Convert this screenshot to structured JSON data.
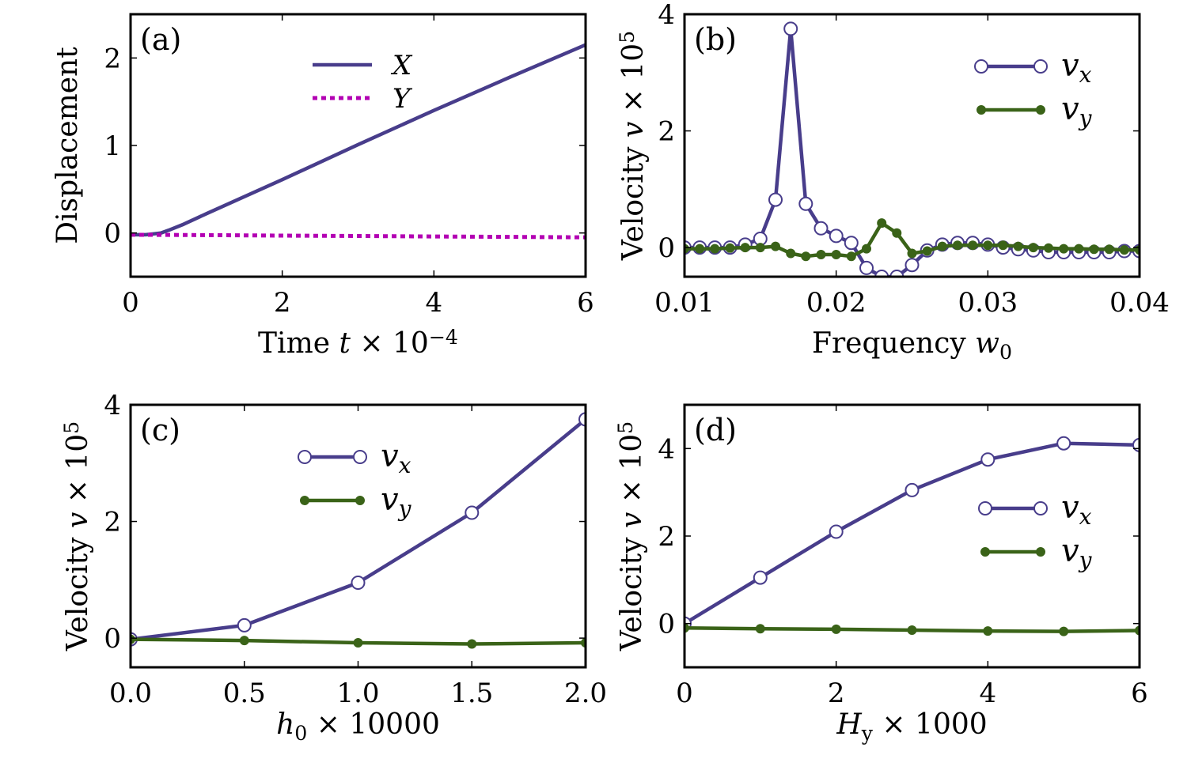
{
  "colors": {
    "vx": "#483d8b",
    "vy": "#3a6318",
    "X": "#483d8b",
    "Y": "#b300b3"
  },
  "chart_data": [
    {
      "type": "line",
      "panel": "(a)",
      "xlabel_parts": [
        "Time ",
        "t",
        " × 10",
        "−4"
      ],
      "ylabel": "Displacement",
      "xlim": [
        0,
        6
      ],
      "ylim": [
        -0.5,
        2.5
      ],
      "xticks": [
        0,
        2,
        4,
        6
      ],
      "xtick_labels": [
        "0",
        "2",
        "4",
        "6"
      ],
      "yticks": [
        0,
        1,
        2
      ],
      "ytick_labels": [
        "0",
        "1",
        "2"
      ],
      "legend_position": "top-center",
      "series": [
        {
          "name": "X",
          "style": "solid",
          "color": "#483d8b",
          "x": [
            0,
            0.2,
            0.3,
            0.4,
            0.5,
            0.7,
            1,
            2,
            3,
            4,
            5,
            6
          ],
          "y": [
            -0.02,
            -0.02,
            -0.01,
            0.0,
            0.03,
            0.1,
            0.22,
            0.61,
            1.01,
            1.4,
            1.78,
            2.15
          ]
        },
        {
          "name": "Y",
          "style": "dashed",
          "color": "#b300b3",
          "x": [
            0,
            1,
            2,
            3,
            4,
            5,
            6
          ],
          "y": [
            -0.02,
            -0.025,
            -0.03,
            -0.035,
            -0.04,
            -0.045,
            -0.05
          ]
        }
      ]
    },
    {
      "type": "line",
      "panel": "(b)",
      "xlabel_parts": [
        "Frequency ",
        "w",
        "0"
      ],
      "ylabel_parts": [
        "Velocity ",
        "v",
        " × 10",
        "5"
      ],
      "xlim": [
        0.01,
        0.04
      ],
      "ylim": [
        -0.5,
        4
      ],
      "xticks": [
        0.01,
        0.02,
        0.03,
        0.04
      ],
      "xtick_labels": [
        "0.01",
        "0.02",
        "0.03",
        "0.04"
      ],
      "yticks": [
        0,
        2,
        4
      ],
      "ytick_labels": [
        "0",
        "2",
        "4"
      ],
      "legend_position": "top-right",
      "series": [
        {
          "name": "vx",
          "legend_parts": [
            "v",
            "x"
          ],
          "marker": "open-circle",
          "color": "#483d8b",
          "x": [
            0.01,
            0.011,
            0.012,
            0.013,
            0.014,
            0.015,
            0.016,
            0.017,
            0.018,
            0.019,
            0.02,
            0.021,
            0.022,
            0.023,
            0.024,
            0.025,
            0.026,
            0.027,
            0.028,
            0.029,
            0.03,
            0.031,
            0.032,
            0.033,
            0.034,
            0.035,
            0.036,
            0.037,
            0.038,
            0.039,
            0.04
          ],
          "y": [
            0.0,
            0.0,
            0.0,
            0.0,
            0.05,
            0.15,
            0.82,
            3.75,
            0.75,
            0.33,
            0.2,
            0.08,
            -0.35,
            -0.5,
            -0.5,
            -0.3,
            -0.05,
            0.05,
            0.08,
            0.08,
            0.05,
            0.0,
            -0.03,
            -0.05,
            -0.08,
            -0.08,
            -0.08,
            -0.08,
            -0.08,
            -0.06,
            -0.06
          ]
        },
        {
          "name": "vy",
          "legend_parts": [
            "v",
            "y"
          ],
          "marker": "filled-circle",
          "color": "#3a6318",
          "x": [
            0.01,
            0.011,
            0.012,
            0.013,
            0.014,
            0.015,
            0.016,
            0.017,
            0.018,
            0.019,
            0.02,
            0.021,
            0.022,
            0.023,
            0.024,
            0.025,
            0.026,
            0.027,
            0.028,
            0.029,
            0.03,
            0.031,
            0.032,
            0.033,
            0.034,
            0.035,
            0.036,
            0.037,
            0.038,
            0.039,
            0.04
          ],
          "y": [
            -0.02,
            -0.02,
            -0.02,
            -0.01,
            0.0,
            0.0,
            0.02,
            -0.1,
            -0.15,
            -0.12,
            -0.12,
            -0.15,
            -0.02,
            0.42,
            0.25,
            -0.1,
            -0.06,
            0.02,
            0.04,
            0.04,
            0.04,
            0.04,
            0.02,
            0.0,
            -0.01,
            -0.02,
            -0.02,
            -0.03,
            -0.03,
            -0.04,
            -0.04
          ]
        }
      ]
    },
    {
      "type": "line",
      "panel": "(c)",
      "xlabel_parts": [
        "h",
        "0",
        " × 10000"
      ],
      "ylabel_parts": [
        "Velocity ",
        "v",
        " × 10",
        "5"
      ],
      "xlim": [
        0,
        2
      ],
      "ylim": [
        -0.5,
        4
      ],
      "xticks": [
        0,
        0.5,
        1,
        1.5,
        2
      ],
      "xtick_labels": [
        "0.0",
        "0.5",
        "1.0",
        "1.5",
        "2.0"
      ],
      "yticks": [
        0,
        2,
        4
      ],
      "ytick_labels": [
        "0",
        "2",
        "4"
      ],
      "legend_position": "top-center",
      "series": [
        {
          "name": "vx",
          "legend_parts": [
            "v",
            "x"
          ],
          "marker": "open-circle",
          "color": "#483d8b",
          "x": [
            0,
            0.5,
            1,
            1.5,
            2
          ],
          "y": [
            -0.02,
            0.22,
            0.95,
            2.15,
            3.75
          ]
        },
        {
          "name": "vy",
          "legend_parts": [
            "v",
            "y"
          ],
          "marker": "filled-circle",
          "color": "#3a6318",
          "x": [
            0,
            0.5,
            1,
            1.5,
            2
          ],
          "y": [
            -0.02,
            -0.04,
            -0.08,
            -0.1,
            -0.08
          ]
        }
      ]
    },
    {
      "type": "line",
      "panel": "(d)",
      "xlabel_parts": [
        "H",
        "y",
        " × 1000"
      ],
      "ylabel_parts": [
        "Velocity ",
        "v",
        " × 10",
        "5"
      ],
      "xlim": [
        0,
        6
      ],
      "ylim": [
        -1,
        5
      ],
      "xticks": [
        0,
        2,
        4,
        6
      ],
      "xtick_labels": [
        "0",
        "2",
        "4",
        "6"
      ],
      "yticks": [
        0,
        2,
        4
      ],
      "ytick_labels": [
        "0",
        "2",
        "4"
      ],
      "legend_position": "right",
      "series": [
        {
          "name": "vx",
          "legend_parts": [
            "v",
            "x"
          ],
          "marker": "open-circle",
          "color": "#483d8b",
          "x": [
            0,
            1,
            2,
            3,
            4,
            5,
            6
          ],
          "y": [
            0.0,
            1.05,
            2.1,
            3.05,
            3.75,
            4.12,
            4.08
          ]
        },
        {
          "name": "vy",
          "legend_parts": [
            "v",
            "y"
          ],
          "marker": "filled-circle",
          "color": "#3a6318",
          "x": [
            0,
            1,
            2,
            3,
            4,
            5,
            6
          ],
          "y": [
            -0.1,
            -0.12,
            -0.13,
            -0.15,
            -0.17,
            -0.18,
            -0.16
          ]
        }
      ]
    }
  ]
}
